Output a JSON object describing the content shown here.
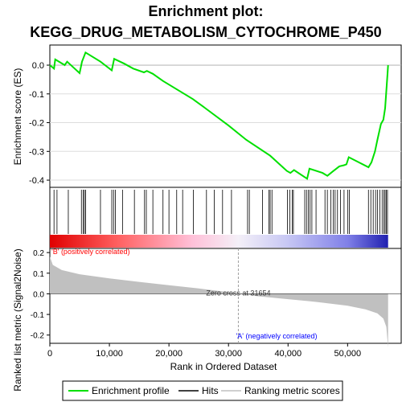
{
  "chart_data": {
    "type": "line",
    "title_line1": "Enrichment plot:",
    "title_line2": "KEGG_DRUG_METABOLISM_CYTOCHROME_P450",
    "es_panel": {
      "ylabel": "Enrichment score (ES)",
      "ylim": [
        -0.425,
        0.07
      ],
      "yticks": [
        0.0,
        -0.1,
        -0.2,
        -0.3,
        -0.4
      ],
      "ytick_labels": [
        "0.0",
        "-0.1",
        "-0.2",
        "-0.3",
        "-0.4"
      ],
      "color": "#00e000",
      "points": [
        [
          0,
          0.0
        ],
        [
          700,
          -0.012
        ],
        [
          900,
          0.02
        ],
        [
          2500,
          0.0
        ],
        [
          2900,
          0.012
        ],
        [
          5000,
          -0.028
        ],
        [
          5400,
          0.012
        ],
        [
          6000,
          0.044
        ],
        [
          8500,
          0.012
        ],
        [
          10400,
          -0.018
        ],
        [
          10800,
          0.022
        ],
        [
          12500,
          0.005
        ],
        [
          14000,
          -0.012
        ],
        [
          15800,
          -0.025
        ],
        [
          16300,
          -0.02
        ],
        [
          17300,
          -0.03
        ],
        [
          19000,
          -0.055
        ],
        [
          24000,
          -0.118
        ],
        [
          26000,
          -0.148
        ],
        [
          30000,
          -0.21
        ],
        [
          33000,
          -0.26
        ],
        [
          37000,
          -0.315
        ],
        [
          39800,
          -0.368
        ],
        [
          40400,
          -0.375
        ],
        [
          41000,
          -0.365
        ],
        [
          43200,
          -0.395
        ],
        [
          43600,
          -0.36
        ],
        [
          45800,
          -0.375
        ],
        [
          46600,
          -0.385
        ],
        [
          47500,
          -0.37
        ],
        [
          48600,
          -0.352
        ],
        [
          49400,
          -0.348
        ],
        [
          49800,
          -0.345
        ],
        [
          50200,
          -0.32
        ],
        [
          53500,
          -0.355
        ],
        [
          54000,
          -0.338
        ],
        [
          54600,
          -0.3
        ],
        [
          55000,
          -0.26
        ],
        [
          55600,
          -0.205
        ],
        [
          56000,
          -0.19
        ],
        [
          56300,
          -0.15
        ],
        [
          56500,
          -0.09
        ],
        [
          56700,
          -0.03
        ],
        [
          56800,
          0.0
        ]
      ]
    },
    "hits": [
      700,
      1200,
      3100,
      5300,
      5600,
      5800,
      6000,
      8500,
      10400,
      10700,
      11000,
      12200,
      14200,
      15900,
      16200,
      17300,
      19000,
      20000,
      21300,
      22300,
      24100,
      26300,
      27600,
      29000,
      30500,
      33200,
      33500,
      35700,
      36800,
      37000,
      37300,
      39900,
      40300,
      40700,
      40900,
      42800,
      43100,
      43400,
      43700,
      44000,
      44700,
      46200,
      46600,
      47200,
      47600,
      47900,
      48300,
      48800,
      49400,
      50000,
      50300,
      53500,
      53900,
      54300,
      54700,
      55000,
      55400,
      55800,
      56100,
      56300,
      56500,
      56700
    ],
    "x_axis": {
      "label": "Rank in Ordered Dataset",
      "xlim": [
        0,
        59000
      ],
      "ticks": [
        0,
        10000,
        20000,
        30000,
        40000,
        50000
      ],
      "tick_labels": [
        "0",
        "10,000",
        "20,000",
        "30,000",
        "40,000",
        "50,000"
      ]
    },
    "metric_panel": {
      "ylabel": "Ranked list metric (Signal2Noise)",
      "ylim": [
        -0.24,
        0.22
      ],
      "yticks": [
        0.2,
        0.1,
        0.0,
        -0.1,
        -0.2
      ],
      "ytick_labels": [
        "0.2",
        "0.1",
        "0.0",
        "-0.1",
        "-0.2"
      ],
      "profile": [
        [
          0,
          0.18
        ],
        [
          500,
          0.14
        ],
        [
          2000,
          0.115
        ],
        [
          5000,
          0.095
        ],
        [
          10000,
          0.075
        ],
        [
          15000,
          0.058
        ],
        [
          20000,
          0.042
        ],
        [
          25000,
          0.026
        ],
        [
          30000,
          0.008
        ],
        [
          31654,
          0.0
        ],
        [
          35000,
          -0.012
        ],
        [
          40000,
          -0.026
        ],
        [
          45000,
          -0.04
        ],
        [
          50000,
          -0.058
        ],
        [
          53000,
          -0.075
        ],
        [
          55000,
          -0.095
        ],
        [
          56000,
          -0.12
        ],
        [
          56500,
          -0.16
        ],
        [
          56800,
          -0.26
        ]
      ],
      "zero_cross_label": "Zero cross at 31654",
      "zero_cross": 31654,
      "pos_label": "'B' (positively correlated)",
      "neg_label": "'A' (negatively correlated)"
    },
    "legend": {
      "items": [
        {
          "label": "Enrichment profile",
          "color": "#00e000"
        },
        {
          "label": "Hits",
          "color": "#000000"
        },
        {
          "label": "Ranking metric scores",
          "color": "#d0d0d0"
        }
      ]
    },
    "colors": {
      "pos": "#ff0000",
      "neg": "#0000ff",
      "metric_fill": "#c0c0c0",
      "zero_cross_line": "#a0a0a0"
    }
  }
}
